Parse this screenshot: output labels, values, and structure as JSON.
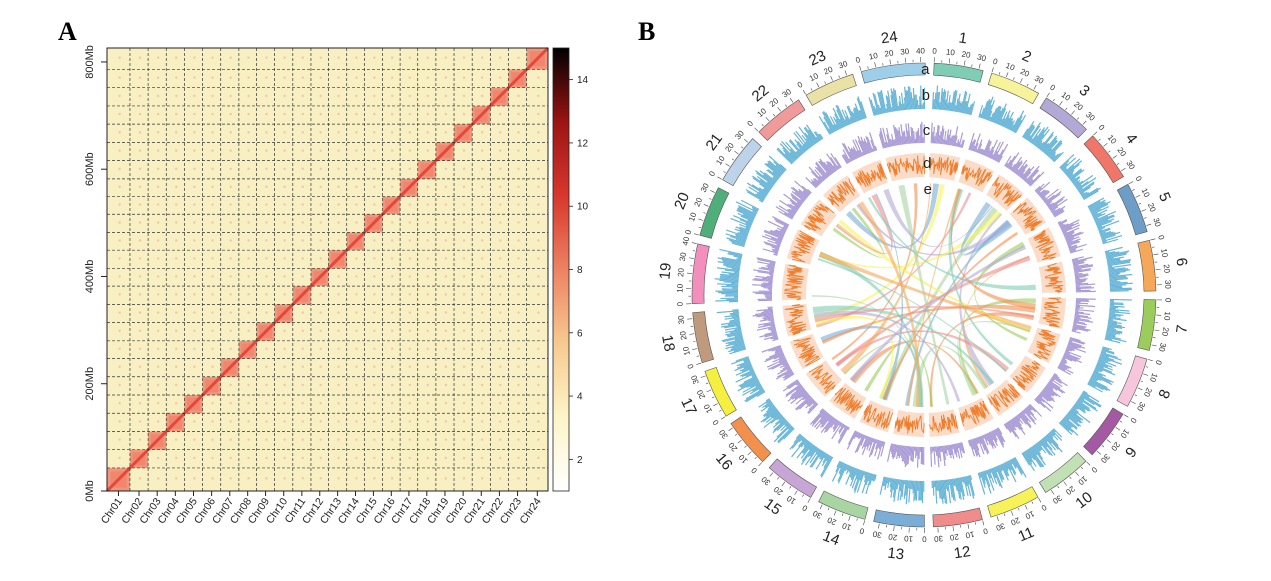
{
  "panels": {
    "a_letter": "A",
    "b_letter": "B"
  },
  "chart_data": [
    {
      "type": "heatmap",
      "title": "",
      "chromosomes": [
        "Chr01",
        "Chr02",
        "Chr03",
        "Chr04",
        "Chr05",
        "Chr06",
        "Chr07",
        "Chr08",
        "Chr09",
        "Chr10",
        "Chr11",
        "Chr12",
        "Chr13",
        "Chr14",
        "Chr15",
        "Chr16",
        "Chr17",
        "Chr18",
        "Chr19",
        "Chr20",
        "Chr21",
        "Chr22",
        "Chr23",
        "Chr24"
      ],
      "chromosome_lengths_mb": [
        43,
        34,
        34,
        34,
        34,
        34,
        34,
        33,
        34,
        34,
        34,
        33,
        34,
        33,
        34,
        33,
        33,
        34,
        34,
        34,
        34,
        34,
        34,
        40
      ],
      "y_ticks": [
        "0Mb",
        "200Mb",
        "400Mb",
        "600Mb",
        "800Mb"
      ],
      "y_tick_values": [
        0,
        200,
        400,
        600,
        800
      ],
      "axis_range_mb": [
        0,
        850
      ],
      "colorbar": {
        "ticks": [
          2,
          4,
          6,
          8,
          10,
          12,
          14
        ],
        "range": [
          1,
          15
        ],
        "colors": [
          "#ffffff",
          "#fdf5c8",
          "#f7c990",
          "#ee8263",
          "#d8372e",
          "#9c1414",
          "#000000"
        ]
      },
      "cell_color": "#f8efc2",
      "diagonal_color": "#e5473b",
      "block_color": "#f08c73"
    },
    {
      "type": "circos",
      "tracks": [
        "a",
        "b",
        "c",
        "d",
        "e"
      ],
      "chromosomes": [
        {
          "label": "1",
          "length": 33,
          "color": "#7fcdb4"
        },
        {
          "label": "2",
          "length": 34,
          "color": "#f7f39a"
        },
        {
          "label": "3",
          "length": 34,
          "color": "#b3a9d6"
        },
        {
          "label": "4",
          "length": 34,
          "color": "#f0766a"
        },
        {
          "label": "5",
          "length": 34,
          "color": "#6e9dc8"
        },
        {
          "label": "6",
          "length": 34,
          "color": "#f5a85a"
        },
        {
          "label": "7",
          "length": 34,
          "color": "#9ccc5c"
        },
        {
          "label": "8",
          "length": 34,
          "color": "#f6c6dc"
        },
        {
          "label": "9",
          "length": 34,
          "color": "#a35aa3"
        },
        {
          "label": "10",
          "length": 34,
          "color": "#c2e0b5"
        },
        {
          "label": "11",
          "length": 34,
          "color": "#f7f25a"
        },
        {
          "label": "12",
          "length": 33,
          "color": "#f08c8c"
        },
        {
          "label": "13",
          "length": 34,
          "color": "#7aaed6"
        },
        {
          "label": "14",
          "length": 33,
          "color": "#a8d5a2"
        },
        {
          "label": "15",
          "length": 34,
          "color": "#c7a6d6"
        },
        {
          "label": "16",
          "length": 33,
          "color": "#f2904e"
        },
        {
          "label": "17",
          "length": 33,
          "color": "#f5ef3f"
        },
        {
          "label": "18",
          "length": 34,
          "color": "#c09a7d"
        },
        {
          "label": "19",
          "length": 40,
          "color": "#f28fbd"
        },
        {
          "label": "20",
          "length": 34,
          "color": "#4fae7a"
        },
        {
          "label": "21",
          "length": 34,
          "color": "#bcd3ea"
        },
        {
          "label": "22",
          "length": 34,
          "color": "#f09a9a"
        },
        {
          "label": "23",
          "length": 34,
          "color": "#e9e1a6"
        },
        {
          "label": "24",
          "length": 43,
          "color": "#9fcfe8"
        }
      ],
      "track_colors": {
        "b": "#68b5d8",
        "c": "#a99bd6",
        "d": "#ef7f2f",
        "d_bg": "#fbdcc8"
      },
      "link_colors": [
        "#f2904e",
        "#9ccc5c",
        "#f7f25a",
        "#7aaed6",
        "#f08c8c",
        "#7fcdb4",
        "#b3a9d6",
        "#f5a85a",
        "#a8d5a2"
      ]
    }
  ]
}
